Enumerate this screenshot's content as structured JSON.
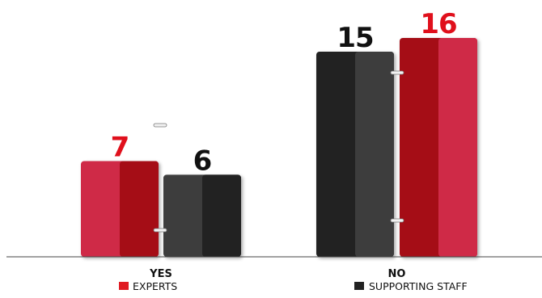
{
  "chart_data": {
    "type": "bar",
    "categories": [
      "YES",
      "NO"
    ],
    "series": [
      {
        "name": "EXPERTS",
        "values": [
          7,
          16
        ],
        "color": "#cf2a47",
        "dark_color": "#a50a16",
        "label_color": "#e0101c"
      },
      {
        "name": "SUPPORTING STAFF",
        "values": [
          6,
          15
        ],
        "color": "#3c3c3c",
        "dark_color": "#232323",
        "label_color": "#111111"
      }
    ],
    "legend_position": "bottom",
    "ylim": [
      0,
      16
    ]
  }
}
